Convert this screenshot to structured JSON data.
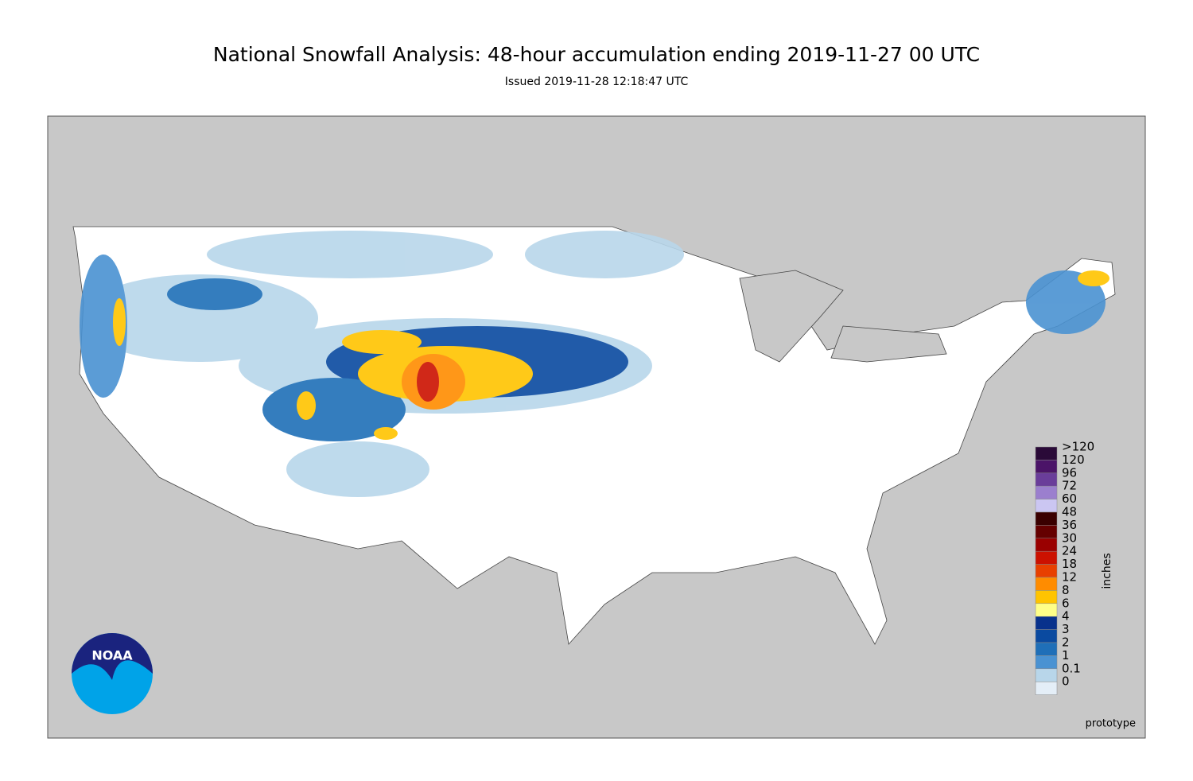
{
  "title": "National Snowfall Analysis: 48-hour accumulation ending 2019-11-27 00 UTC",
  "subtitle": "Issued 2019-11-28 12:18:47 UTC",
  "legend": {
    "title": "inches",
    "items": [
      {
        "label": ">120",
        "color": "#2a0a38"
      },
      {
        "label": "120",
        "color": "#4b1468"
      },
      {
        "label": "96",
        "color": "#6a3d9a"
      },
      {
        "label": "72",
        "color": "#9b7fce"
      },
      {
        "label": "60",
        "color": "#cbc6f2"
      },
      {
        "label": "48",
        "color": "#3a0000"
      },
      {
        "label": "36",
        "color": "#650000"
      },
      {
        "label": "30",
        "color": "#9a0000"
      },
      {
        "label": "24",
        "color": "#cc1100"
      },
      {
        "label": "18",
        "color": "#e84000"
      },
      {
        "label": "12",
        "color": "#ff8c00"
      },
      {
        "label": "8",
        "color": "#ffc400"
      },
      {
        "label": "6",
        "color": "#ffff88"
      },
      {
        "label": "4",
        "color": "#08318c"
      },
      {
        "label": "3",
        "color": "#0a4aa0"
      },
      {
        "label": "2",
        "color": "#1f6fb8"
      },
      {
        "label": "1",
        "color": "#4a92d2"
      },
      {
        "label": "0.1",
        "color": "#b8d6ea"
      },
      {
        "label": "0",
        "color": "#e4eef7"
      }
    ]
  },
  "logo": "NOAA",
  "note": "prototype"
}
